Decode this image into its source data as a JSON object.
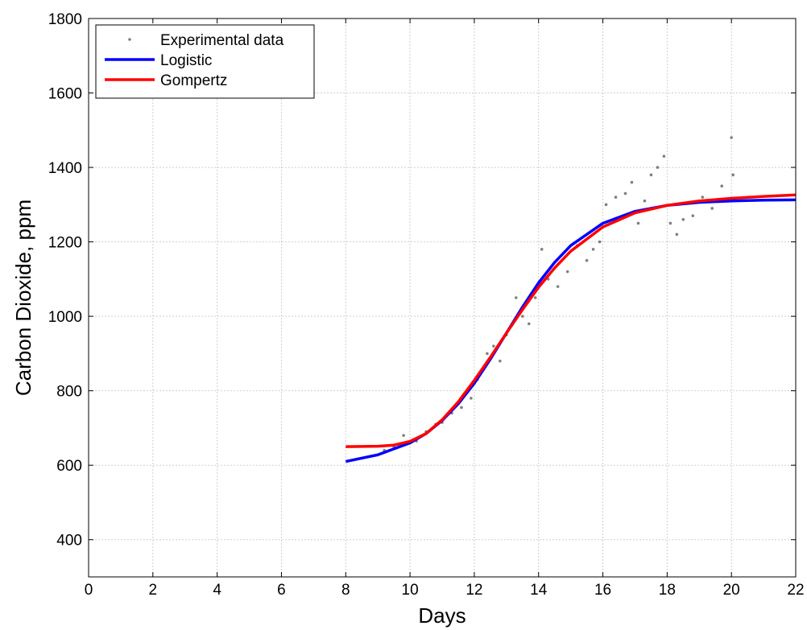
{
  "chart_data": {
    "type": "line",
    "title": "",
    "xlabel": "Days",
    "ylabel": "Carbon Dioxide, ppm",
    "xlim": [
      0,
      22
    ],
    "ylim": [
      300,
      1800
    ],
    "xticks": [
      0,
      2,
      4,
      6,
      8,
      10,
      12,
      14,
      16,
      18,
      20,
      22
    ],
    "yticks": [
      400,
      600,
      800,
      1000,
      1200,
      1400,
      1600,
      1800
    ],
    "grid": true,
    "legend_position": "top-left",
    "series": [
      {
        "name": "Experimental data",
        "style": "points",
        "color": "#808080",
        "x": [
          9.2,
          9.5,
          9.8,
          10.0,
          10.2,
          10.5,
          10.8,
          11.0,
          11.3,
          11.6,
          11.9,
          12.1,
          12.4,
          12.6,
          12.8,
          13.0,
          13.3,
          13.5,
          13.7,
          13.9,
          14.1,
          14.3,
          14.6,
          14.9,
          15.2,
          15.5,
          15.7,
          15.9,
          16.1,
          16.4,
          16.7,
          16.9,
          17.1,
          17.3,
          17.5,
          17.7,
          17.9,
          18.1,
          18.3,
          18.5,
          18.8,
          19.1,
          19.4,
          19.7,
          19.9,
          20.0,
          20.05
        ],
        "y": [
          640,
          650,
          680,
          660,
          665,
          690,
          710,
          715,
          740,
          755,
          780,
          830,
          900,
          920,
          880,
          950,
          1050,
          1000,
          980,
          1050,
          1180,
          1100,
          1080,
          1120,
          1190,
          1150,
          1180,
          1200,
          1300,
          1320,
          1330,
          1360,
          1250,
          1310,
          1380,
          1400,
          1430,
          1250,
          1220,
          1260,
          1270,
          1320,
          1290,
          1350,
          1310,
          1480,
          1380
        ]
      },
      {
        "name": "Logistic",
        "style": "line",
        "color": "#0000ff",
        "x": [
          8,
          9,
          10,
          10.5,
          11,
          11.5,
          12,
          12.5,
          13,
          13.5,
          14,
          14.5,
          15,
          16,
          17,
          18,
          19,
          20,
          21,
          22
        ],
        "y": [
          610,
          628,
          660,
          685,
          720,
          765,
          820,
          885,
          955,
          1025,
          1090,
          1145,
          1190,
          1250,
          1282,
          1298,
          1306,
          1310,
          1312,
          1313
        ]
      },
      {
        "name": "Gompertz",
        "style": "line",
        "color": "#ff0000",
        "x": [
          8,
          9,
          9.5,
          10,
          10.5,
          11,
          11.5,
          12,
          12.5,
          13,
          13.5,
          14,
          14.5,
          15,
          16,
          17,
          18,
          19,
          20,
          21,
          22
        ],
        "y": [
          650,
          651,
          654,
          664,
          685,
          722,
          770,
          828,
          890,
          955,
          1018,
          1078,
          1130,
          1175,
          1240,
          1278,
          1298,
          1310,
          1317,
          1322,
          1326
        ]
      }
    ]
  }
}
